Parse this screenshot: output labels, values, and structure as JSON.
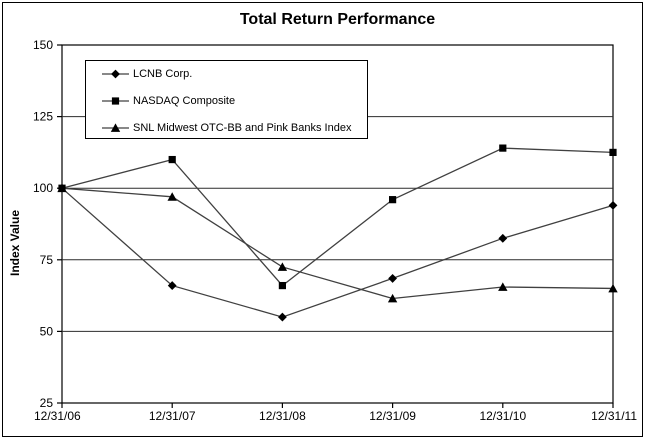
{
  "title": "Total Return Performance",
  "chart_data": {
    "type": "line",
    "title": "Total Return Performance",
    "xlabel": "",
    "ylabel": "Index Value",
    "categories": [
      "12/31/06",
      "12/31/07",
      "12/31/08",
      "12/31/09",
      "12/31/10",
      "12/31/11"
    ],
    "series": [
      {
        "name": "LCNB Corp.",
        "marker": "diamond",
        "values": [
          100,
          66,
          55,
          68.5,
          82.5,
          94
        ]
      },
      {
        "name": "NASDAQ Composite",
        "marker": "square",
        "values": [
          100,
          110,
          66,
          96,
          114,
          112.5
        ]
      },
      {
        "name": "SNL Midwest OTC-BB and Pink Banks Index",
        "marker": "triangle",
        "values": [
          100,
          97,
          72.5,
          61.5,
          65.5,
          65
        ]
      }
    ],
    "ylim": [
      25,
      150
    ],
    "y_ticks": [
      25,
      50,
      75,
      100,
      125,
      150
    ],
    "grid": "horizontal",
    "legend_position": "top-left-inside",
    "colors": {
      "line": "#404040",
      "marker": "#000000",
      "axis": "#000000",
      "background": "#ffffff"
    }
  }
}
